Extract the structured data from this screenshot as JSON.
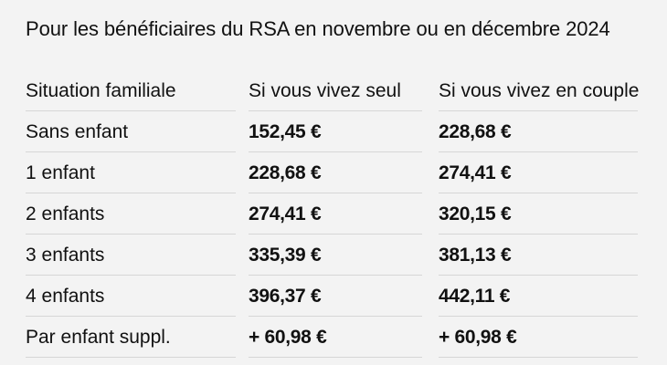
{
  "heading": "Pour les bénéficiaires du RSA en novembre ou en décembre 2024",
  "table": {
    "headers": [
      "Situation familiale",
      "Si vous vivez seul",
      "Si vous vivez en couple"
    ],
    "rows": [
      [
        "Sans enfant",
        "152,45 €",
        "228,68 €"
      ],
      [
        "1 enfant",
        "228,68 €",
        "274,41 €"
      ],
      [
        "2 enfants",
        "274,41 €",
        "320,15 €"
      ],
      [
        "3 enfants",
        "335,39 €",
        "381,13 €"
      ],
      [
        "4 enfants",
        "396,37 €",
        "442,11 €"
      ],
      [
        "Par enfant suppl.",
        "+ 60,98 €",
        "+ 60,98 €"
      ]
    ]
  },
  "colors": {
    "background": "#f3f3f3",
    "text": "#111111",
    "rule": "#d6d6d6"
  }
}
